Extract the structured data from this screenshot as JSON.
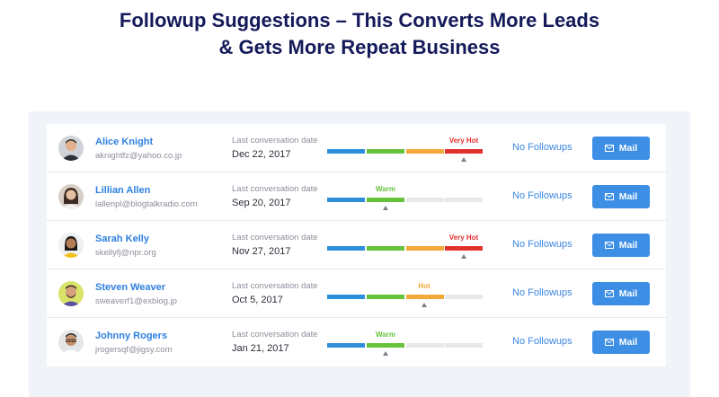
{
  "headline": {
    "line1": "Followup Suggestions – This Converts More Leads",
    "line2": "& Gets More Repeat Business"
  },
  "colors": {
    "accent": "#3d8fe6",
    "link": "#2f80e0",
    "cold": "#2d8fd9",
    "warm": "#66c23a",
    "hot": "#f3a93a",
    "very_hot": "#e0312f"
  },
  "leads": [
    {
      "name": "Alice Knight",
      "email": "aknightfz@yahoo.co.jp",
      "last_label": "Last conversation date",
      "last_date": "Dec 22, 2017",
      "heat": "Very Hot",
      "heat_level": 4,
      "followups": "No Followups",
      "mail_label": "Mail",
      "avatar": "avatar-man-dark-hair"
    },
    {
      "name": "Lillian Allen",
      "email": "lallenpl@blogtalkradio.com",
      "last_label": "Last conversation date",
      "last_date": "Sep 20, 2017",
      "heat": "Warm",
      "heat_level": 2,
      "followups": "No Followups",
      "mail_label": "Mail",
      "avatar": "avatar-woman-dark-hair"
    },
    {
      "name": "Sarah Kelly",
      "email": "skellyfj@npr.org",
      "last_label": "Last conversation date",
      "last_date": "Nov 27, 2017",
      "heat": "Very Hot",
      "heat_level": 4,
      "followups": "No Followups",
      "mail_label": "Mail",
      "avatar": "avatar-woman-yellow-top"
    },
    {
      "name": "Steven Weaver",
      "email": "sweaverf1@exblog.jp",
      "last_label": "Last conversation date",
      "last_date": "Oct 5, 2017",
      "heat": "Hot",
      "heat_level": 3,
      "followups": "No Followups",
      "mail_label": "Mail",
      "avatar": "avatar-man-beard"
    },
    {
      "name": "Johnny Rogers",
      "email": "jrogersqf@jigsy.com",
      "last_label": "Last conversation date",
      "last_date": "Jan 21, 2017",
      "heat": "Warm",
      "heat_level": 2,
      "followups": "No Followups",
      "mail_label": "Mail",
      "avatar": "avatar-man-glasses"
    }
  ]
}
